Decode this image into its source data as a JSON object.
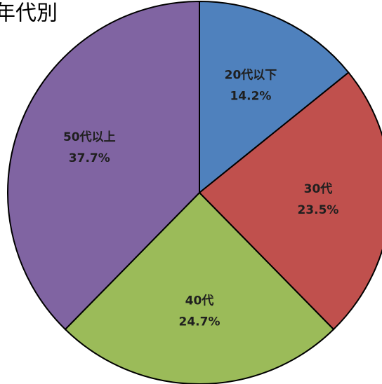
{
  "chart_data": {
    "type": "pie",
    "title": "年代別",
    "categories": [
      "20代以下",
      "30代",
      "40代",
      "50代以上"
    ],
    "values": [
      14.2,
      23.5,
      24.7,
      37.7
    ],
    "value_labels": [
      "14.2%",
      "23.5%",
      "24.7%",
      "37.7%"
    ],
    "colors": [
      "#4f81bd",
      "#c0504d",
      "#9bbb59",
      "#8064a2"
    ]
  }
}
